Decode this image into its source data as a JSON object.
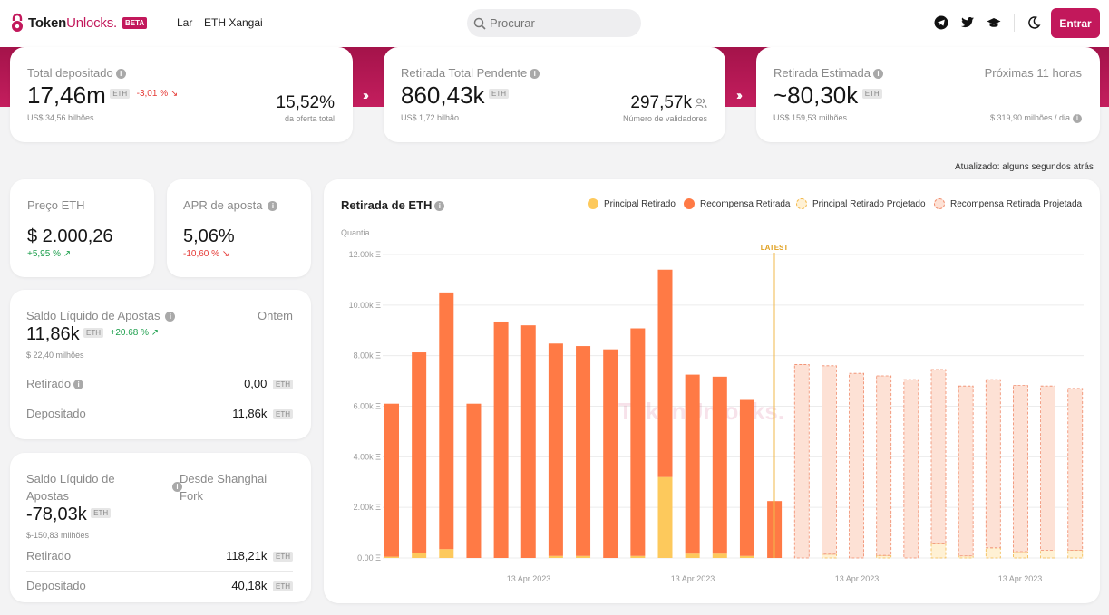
{
  "nav": {
    "logo_token": "Token",
    "logo_unlocks": "Unlocks.",
    "beta": "BETA",
    "link_home": "Lar",
    "link_shanghai": "ETH Xangai",
    "search_placeholder": "Procurar",
    "login": "Entrar",
    "icons": [
      "telegram-icon",
      "twitter-icon",
      "graduation-cap-icon",
      "moon-icon"
    ]
  },
  "top_cards": {
    "deposited": {
      "label": "Total depositado",
      "value": "17,46m",
      "unit": "ETH",
      "change": "-3,01 %",
      "usd": "US$ 34,56 bilhões",
      "side_value": "15,52%",
      "side_label": "da oferta total"
    },
    "pending": {
      "label": "Retirada Total Pendente",
      "value": "860,43k",
      "unit": "ETH",
      "usd": "US$ 1,72 bilhão",
      "side_value": "297,57k",
      "side_label": "Número de validadores"
    },
    "estimated": {
      "label": "Retirada Estimada",
      "right_label": "Próximas 11 horas",
      "value": "~80,30k",
      "unit": "ETH",
      "usd": "US$ 159,53 milhões",
      "side_label": "$ 319,90 milhões / dia"
    }
  },
  "updated": "Atualizado: alguns segundos atrás",
  "price": {
    "label": "Preço ETH",
    "value": "$ 2.000,26",
    "change": "+5,95 %"
  },
  "apr": {
    "label": "APR de aposta",
    "value": "5,06%",
    "change": "-10,60 %"
  },
  "net_stake": {
    "label": "Saldo Líquido de Apostas",
    "period": "Ontem",
    "value": "11,86k",
    "unit": "ETH",
    "change": "+20.68 %",
    "usd": "$ 22,40 milhões",
    "withdrawn_label": "Retirado",
    "withdrawn_value": "0,00",
    "deposited_label": "Depositado",
    "deposited_value": "11,86k"
  },
  "net_stake_since": {
    "label_line1": "Saldo Líquido de",
    "label_line2": "Apostas",
    "period_line1": "Desde Shanghai",
    "period_line2": "Fork",
    "value": "-78,03k",
    "unit": "ETH",
    "usd": "$-150,83 milhões",
    "withdrawn_label": "Retirado",
    "withdrawn_value": "118,21k",
    "deposited_label": "Depositado",
    "deposited_value": "40,18k"
  },
  "chart_data": {
    "type": "bar",
    "title": "Retirada de ETH",
    "ylabel": "Quantia",
    "ylim": [
      0,
      12000
    ],
    "yticks": [
      "0.00 Ξ",
      "2.00k Ξ",
      "4.00k Ξ",
      "6.00k Ξ",
      "8.00k Ξ",
      "10.00k Ξ",
      "12.00k Ξ"
    ],
    "xtick_labels": [
      "13 Apr 2023",
      "13 Apr 2023",
      "13 Apr 2023",
      "13 Apr 2023"
    ],
    "latest_label": "LATEST",
    "watermark": "TokenUnlocks.",
    "legend": [
      {
        "name": "Principal Retirado",
        "color": "#fdc95c"
      },
      {
        "name": "Recompensa Retirada",
        "color": "#ff7a45"
      },
      {
        "name": "Principal Retirado Projetado",
        "color": "#fff1d4"
      },
      {
        "name": "Recompensa Retirada Projetada",
        "color": "#fde1d5"
      }
    ],
    "series": [
      {
        "name": "Principal Retirado",
        "values": [
          50,
          180,
          350,
          0,
          0,
          0,
          80,
          80,
          0,
          80,
          3200,
          170,
          170,
          80,
          0,
          0,
          0,
          0,
          0,
          0,
          0,
          0,
          0,
          0,
          0,
          0,
          0,
          0
        ]
      },
      {
        "name": "Recompensa Retirada",
        "values": [
          6050,
          7950,
          10150,
          6100,
          9350,
          9200,
          8400,
          8300,
          8250,
          9000,
          8200,
          7080,
          7000,
          6170,
          2250,
          0,
          0,
          0,
          0,
          0,
          0,
          0,
          0,
          0,
          0,
          0,
          0,
          0
        ]
      },
      {
        "name": "Principal Retirado Projetado",
        "values": [
          0,
          0,
          0,
          0,
          0,
          0,
          0,
          0,
          0,
          0,
          0,
          0,
          0,
          0,
          0,
          0,
          150,
          0,
          100,
          0,
          550,
          80,
          400,
          250,
          300,
          300,
          0,
          0
        ]
      },
      {
        "name": "Recompensa Retirada Projetada",
        "values": [
          0,
          0,
          0,
          0,
          0,
          0,
          0,
          0,
          0,
          0,
          0,
          0,
          0,
          0,
          0,
          7650,
          7450,
          7300,
          7100,
          7050,
          6900,
          6720,
          6650,
          6570,
          6500,
          6400,
          0,
          0
        ]
      }
    ]
  },
  "colors": {
    "brand": "#c2185b",
    "negative": "#e53935",
    "positive": "#1b9e4b"
  }
}
